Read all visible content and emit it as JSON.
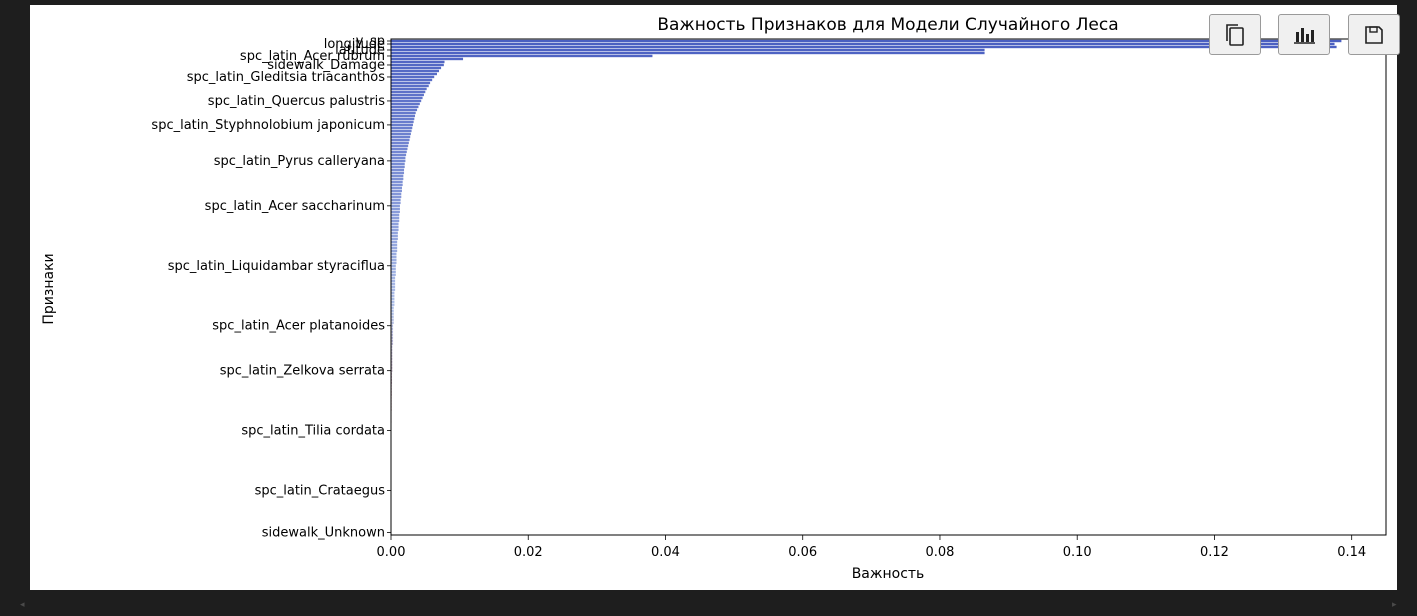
{
  "toolbar": {
    "buttons": [
      {
        "name": "copy-button",
        "icon": "copy-icon"
      },
      {
        "name": "chart-button",
        "icon": "bar-chart-icon"
      },
      {
        "name": "save-button",
        "icon": "floppy-disk-icon"
      }
    ]
  },
  "colors": {
    "page_background": "#1e1e1e",
    "figure_background": "#ffffff",
    "bar_strong": "#4a5fc1",
    "bar_light": "#aebfe8",
    "bar_dark_tail": "#c04a2a"
  },
  "chart_data": {
    "type": "bar",
    "orientation": "horizontal",
    "title": "Важность Признаков для Модели Случайного Леса",
    "xlabel": "Важность",
    "ylabel": "Признаки",
    "xlim": [
      0,
      0.145
    ],
    "xticks": [
      "0.00",
      "0.02",
      "0.04",
      "0.06",
      "0.08",
      "0.10",
      "0.12",
      "0.14"
    ],
    "xtick_values": [
      0,
      0.02,
      0.04,
      0.06,
      0.08,
      0.1,
      0.12,
      0.14
    ],
    "grid": false,
    "legend": "none",
    "readable_labels": [
      "y_sp",
      "longitude",
      "latitude",
      "spc_latin_Acer rubrum",
      "sidewalk_Damage",
      "spc_latin_Gleditsia triacanthos",
      "spc_latin_Quercus palustris",
      "spc_latin_Styphnolobium japonicum",
      "spc_latin_Pyrus calleryana",
      "spc_latin_Acer saccharinum",
      "spc_latin_Liquidambar styraciflua",
      "spc_latin_Acer platanoides",
      "spc_latin_Zelkova serrata",
      "spc_latin_Tilia cordata",
      "spc_latin_Crataegus",
      "sidewalk_Unknown"
    ],
    "values": [
      0.1385,
      0.1375,
      0.1378,
      0.0865,
      0.0865,
      0.0381,
      0.0105,
      0.0078,
      0.0077,
      0.0073,
      0.007,
      0.0067,
      0.0063,
      0.006,
      0.0057,
      0.0055,
      0.0052,
      0.005,
      0.0048,
      0.0046,
      0.0044,
      0.0042,
      0.004,
      0.0038,
      0.0036,
      0.0035,
      0.0034,
      0.0033,
      0.0032,
      0.0031,
      0.003,
      0.0029,
      0.0028,
      0.0027,
      0.0026,
      0.0025,
      0.0024,
      0.0023,
      0.0022,
      0.0021,
      0.0021,
      0.002,
      0.002,
      0.0019,
      0.0019,
      0.0018,
      0.0018,
      0.0017,
      0.0017,
      0.0016,
      0.0016,
      0.0015,
      0.0015,
      0.0014,
      0.0014,
      0.0013,
      0.0013,
      0.0013,
      0.0012,
      0.0012,
      0.0012,
      0.0011,
      0.0011,
      0.0011,
      0.001,
      0.001,
      0.001,
      0.0009,
      0.0009,
      0.0009,
      0.0009,
      0.0008,
      0.0008,
      0.0008,
      0.0008,
      0.0007,
      0.0007,
      0.0007,
      0.0007,
      0.0006,
      0.0006,
      0.0006,
      0.0006,
      0.0006,
      0.0005,
      0.0005,
      0.0005,
      0.0005,
      0.0005,
      0.0004,
      0.0004,
      0.0004,
      0.0004,
      0.0004,
      0.0004,
      0.0003,
      0.0003,
      0.0003,
      0.0003,
      0.0003,
      0.0003,
      0.0003,
      0.0002,
      0.0002,
      0.0002,
      0.0002,
      0.0002,
      0.0002,
      0.0002,
      0.0002,
      0.0002,
      0.00015,
      0.00015,
      0.00015,
      0.00015,
      0.00012,
      0.00012,
      0.00012,
      0.00012,
      0.0001,
      0.0001,
      0.0001,
      0.0001,
      0.0001,
      8e-05,
      8e-05,
      8e-05,
      8e-05,
      7e-05,
      7e-05,
      6e-05,
      6e-05,
      6e-05,
      5e-05,
      5e-05,
      5e-05,
      4e-05,
      4e-05,
      4e-05,
      3e-05,
      3e-05,
      3e-05,
      3e-05,
      2e-05,
      2e-05,
      2e-05,
      2e-05,
      2e-05,
      1e-05,
      1e-05,
      1e-05,
      1e-05,
      1e-05,
      1e-05,
      1e-05,
      5e-06,
      5e-06,
      5e-06,
      5e-06,
      5e-06,
      3e-06,
      3e-06,
      3e-06,
      2e-06,
      2e-06
    ]
  }
}
